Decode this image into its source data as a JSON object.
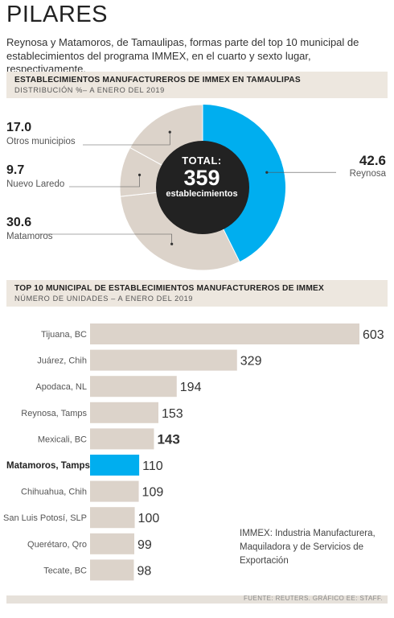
{
  "header": {
    "title": "PILARES",
    "intro": "Reynosa y Matamoros, de Tamaulipas, formas parte del top 10 municipal de establecimientos del programa IMMEX, en el cuarto y sexto lugar, respectivamente."
  },
  "colors": {
    "accent": "#00aeef",
    "bar": "#dcd3ca",
    "center_disc": "#222222",
    "band": "#ede7df"
  },
  "chart_data": [
    {
      "type": "pie",
      "title": "ESTABLECIMIENTOS MANUFACTUREROS DE IMMEX EN TAMAULIPAS",
      "subtitle": "DISTRIBUCIÓN %– A ENERO DEL 2019",
      "center": {
        "line1": "TOTAL:",
        "line2": "359",
        "line3": "establecimientos"
      },
      "slices": [
        {
          "label": "Reynosa",
          "value": 42.6,
          "display": "42.6",
          "highlight": true
        },
        {
          "label": "Matamoros",
          "value": 30.6,
          "display": "30.6"
        },
        {
          "label": "Nuevo Laredo",
          "value": 9.7,
          "display": "9.7"
        },
        {
          "label": "Otros municipios",
          "value": 17.0,
          "display": "17.0"
        }
      ]
    },
    {
      "type": "bar",
      "orientation": "horizontal",
      "title": "TOP 10 MUNICIPAL DE ESTABLECIMIENTOS MANUFACTUREROS DE IMMEX",
      "subtitle": "NÚMERO DE UNIDADES – A ENERO DEL 2019",
      "categories": [
        "Tijuana, BC",
        "Juárez, Chih",
        "Apodaca, NL",
        "Reynosa, Tamps",
        "Mexicali, BC",
        "Matamoros, Tamps",
        "Chihuahua, Chih",
        "San Luis Potosí, SLP",
        "Querétaro, Qro",
        "Tecate, BC"
      ],
      "values": [
        603,
        329,
        194,
        153,
        143,
        110,
        109,
        100,
        99,
        98
      ],
      "highlight_index": 5,
      "bold_value_index": 4
    }
  ],
  "note": "IMMEX: Industria Manufacturera, Maquiladora y de Servicios de Exportación",
  "footer": "FUENTE: REUTERS. GRÁFICO EE: STAFF."
}
